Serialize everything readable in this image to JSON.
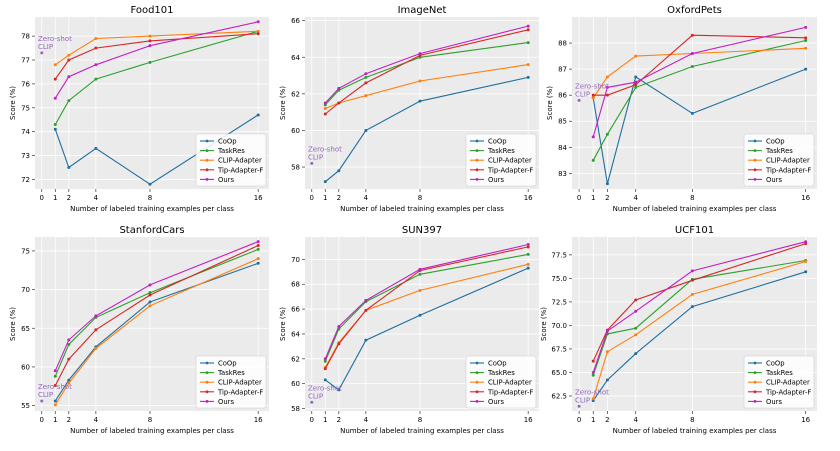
{
  "colors": {
    "CoOp": "#1f6f9f",
    "TaskRes": "#2ca02c",
    "CLIP-Adapter": "#ff7f0e",
    "Tip-Adapter-F": "#d62728",
    "Ours": "#c21fc2",
    "zeroshot": "#9467bd",
    "panel_bg": "#ebebeb",
    "grid": "#ffffff"
  },
  "legend_labels": [
    "CoOp",
    "TaskRes",
    "CLIP-Adapter",
    "Tip-Adapter-F",
    "Ours"
  ],
  "zeroshot_label": [
    "Zero-shot",
    "CLIP"
  ],
  "chart_data": [
    {
      "type": "line",
      "title": "Food101",
      "xlabel": "Number of labeled training examples per class",
      "ylabel": "Score (%)",
      "x": [
        1,
        2,
        4,
        8,
        16
      ],
      "xticks": [
        0,
        1,
        2,
        4,
        8,
        16
      ],
      "xlim": [
        -0.5,
        16.8
      ],
      "ylim": [
        71.6,
        78.8
      ],
      "yticks": [
        72,
        73,
        74,
        75,
        76,
        77,
        78
      ],
      "grid": true,
      "legend_position": "lower-right",
      "zeroshot": {
        "x": 0,
        "y": 77.3
      },
      "series": [
        {
          "name": "CoOp",
          "values": [
            74.1,
            72.5,
            73.3,
            71.8,
            74.7
          ]
        },
        {
          "name": "TaskRes",
          "values": [
            74.3,
            75.3,
            76.2,
            76.9,
            78.2
          ]
        },
        {
          "name": "CLIP-Adapter",
          "values": [
            76.8,
            77.2,
            77.9,
            78.0,
            78.2
          ]
        },
        {
          "name": "Tip-Adapter-F",
          "values": [
            76.2,
            77.0,
            77.5,
            77.8,
            78.1
          ]
        },
        {
          "name": "Ours",
          "values": [
            75.4,
            76.3,
            76.8,
            77.6,
            78.6
          ]
        }
      ]
    },
    {
      "type": "line",
      "title": "ImageNet",
      "xlabel": "Number of labeled training examples per class",
      "ylabel": "Score (%)",
      "x": [
        1,
        2,
        4,
        8,
        16
      ],
      "xticks": [
        0,
        1,
        2,
        4,
        8,
        16
      ],
      "xlim": [
        -0.5,
        16.8
      ],
      "ylim": [
        56.8,
        66.2
      ],
      "yticks": [
        58,
        60,
        62,
        64,
        66
      ],
      "grid": true,
      "legend_position": "lower-right",
      "zeroshot": {
        "x": 0,
        "y": 58.2
      },
      "series": [
        {
          "name": "CoOp",
          "values": [
            57.2,
            57.8,
            60.0,
            61.6,
            62.9
          ]
        },
        {
          "name": "TaskRes",
          "values": [
            61.4,
            62.2,
            62.9,
            64.0,
            64.8
          ]
        },
        {
          "name": "CLIP-Adapter",
          "values": [
            61.2,
            61.5,
            61.9,
            62.7,
            63.6
          ]
        },
        {
          "name": "Tip-Adapter-F",
          "values": [
            60.9,
            61.5,
            62.6,
            64.1,
            65.5
          ]
        },
        {
          "name": "Ours",
          "values": [
            61.5,
            62.3,
            63.1,
            64.2,
            65.7
          ]
        }
      ]
    },
    {
      "type": "line",
      "title": "OxfordPets",
      "xlabel": "Number of labeled training examples per class",
      "ylabel": "Score (%)",
      "x": [
        1,
        2,
        4,
        8,
        16
      ],
      "xticks": [
        0,
        1,
        2,
        4,
        8,
        16
      ],
      "xlim": [
        -0.5,
        16.8
      ],
      "ylim": [
        82.4,
        89.0
      ],
      "yticks": [
        83,
        84,
        85,
        86,
        87,
        88
      ],
      "grid": true,
      "legend_position": "lower-right",
      "zeroshot": {
        "x": 0,
        "y": 85.8
      },
      "series": [
        {
          "name": "CoOp",
          "values": [
            85.9,
            82.6,
            86.7,
            85.3,
            87.0
          ]
        },
        {
          "name": "TaskRes",
          "values": [
            83.5,
            84.5,
            86.3,
            87.1,
            88.1
          ]
        },
        {
          "name": "CLIP-Adapter",
          "values": [
            85.9,
            86.7,
            87.5,
            87.6,
            87.8
          ]
        },
        {
          "name": "Tip-Adapter-F",
          "values": [
            86.0,
            86.0,
            86.4,
            88.3,
            88.2
          ]
        },
        {
          "name": "Ours",
          "values": [
            84.4,
            86.3,
            86.5,
            87.6,
            88.6
          ]
        }
      ]
    },
    {
      "type": "line",
      "title": "StanfordCars",
      "xlabel": "Number of labeled training examples per class",
      "ylabel": "Score (%)",
      "x": [
        1,
        2,
        4,
        8,
        16
      ],
      "xticks": [
        0,
        1,
        2,
        4,
        8,
        16
      ],
      "xlim": [
        -0.5,
        16.8
      ],
      "ylim": [
        54.3,
        76.8
      ],
      "yticks": [
        55,
        60,
        65,
        70,
        75
      ],
      "grid": true,
      "legend_position": "lower-right",
      "zeroshot": {
        "x": 0,
        "y": 55.6
      },
      "series": [
        {
          "name": "CoOp",
          "values": [
            55.6,
            58.3,
            62.6,
            68.4,
            73.4
          ]
        },
        {
          "name": "TaskRes",
          "values": [
            58.8,
            62.9,
            66.4,
            69.6,
            75.2
          ]
        },
        {
          "name": "CLIP-Adapter",
          "values": [
            55.1,
            57.9,
            62.4,
            67.9,
            74.0
          ]
        },
        {
          "name": "Tip-Adapter-F",
          "values": [
            57.6,
            61.0,
            64.8,
            69.3,
            75.7
          ]
        },
        {
          "name": "Ours",
          "values": [
            59.5,
            63.5,
            66.6,
            70.6,
            76.2
          ]
        }
      ]
    },
    {
      "type": "line",
      "title": "SUN397",
      "xlabel": "Number of labeled training examples per class",
      "ylabel": "Score (%)",
      "x": [
        1,
        2,
        4,
        8,
        16
      ],
      "xticks": [
        0,
        1,
        2,
        4,
        8,
        16
      ],
      "xlim": [
        -0.5,
        16.8
      ],
      "ylim": [
        57.8,
        71.8
      ],
      "yticks": [
        58,
        60,
        62,
        64,
        66,
        68,
        70
      ],
      "grid": true,
      "legend_position": "lower-right",
      "zeroshot": {
        "x": 0,
        "y": 58.5
      },
      "series": [
        {
          "name": "CoOp",
          "values": [
            60.3,
            59.5,
            63.5,
            65.5,
            69.3
          ]
        },
        {
          "name": "TaskRes",
          "values": [
            61.8,
            64.4,
            66.6,
            68.8,
            70.4
          ]
        },
        {
          "name": "CLIP-Adapter",
          "values": [
            61.3,
            63.3,
            65.9,
            67.5,
            69.6
          ]
        },
        {
          "name": "Tip-Adapter-F",
          "values": [
            61.2,
            63.2,
            65.9,
            69.1,
            71.0
          ]
        },
        {
          "name": "Ours",
          "values": [
            62.0,
            64.6,
            66.7,
            69.2,
            71.2
          ]
        }
      ]
    },
    {
      "type": "line",
      "title": "UCF101",
      "xlabel": "Number of labeled training examples per class",
      "ylabel": "Score (%)",
      "x": [
        1,
        2,
        4,
        8,
        16
      ],
      "xticks": [
        0,
        1,
        2,
        4,
        8,
        16
      ],
      "xlim": [
        -0.5,
        16.8
      ],
      "ylim": [
        60.9,
        79.4
      ],
      "yticks": [
        62.5,
        65.0,
        67.5,
        70.0,
        72.5,
        75.0,
        77.5
      ],
      "ytick_decimals": 1,
      "grid": true,
      "legend_position": "lower-right",
      "zeroshot": {
        "x": 0,
        "y": 61.4
      },
      "series": [
        {
          "name": "CoOp",
          "values": [
            62.0,
            64.2,
            67.0,
            72.0,
            75.7
          ]
        },
        {
          "name": "TaskRes",
          "values": [
            64.7,
            69.1,
            69.7,
            74.9,
            76.9
          ]
        },
        {
          "name": "CLIP-Adapter",
          "values": [
            62.2,
            67.2,
            69.0,
            73.3,
            76.8
          ]
        },
        {
          "name": "Tip-Adapter-F",
          "values": [
            66.2,
            69.5,
            72.7,
            74.8,
            78.7
          ]
        },
        {
          "name": "Ours",
          "values": [
            65.0,
            69.4,
            71.5,
            75.8,
            78.9
          ]
        }
      ]
    }
  ]
}
